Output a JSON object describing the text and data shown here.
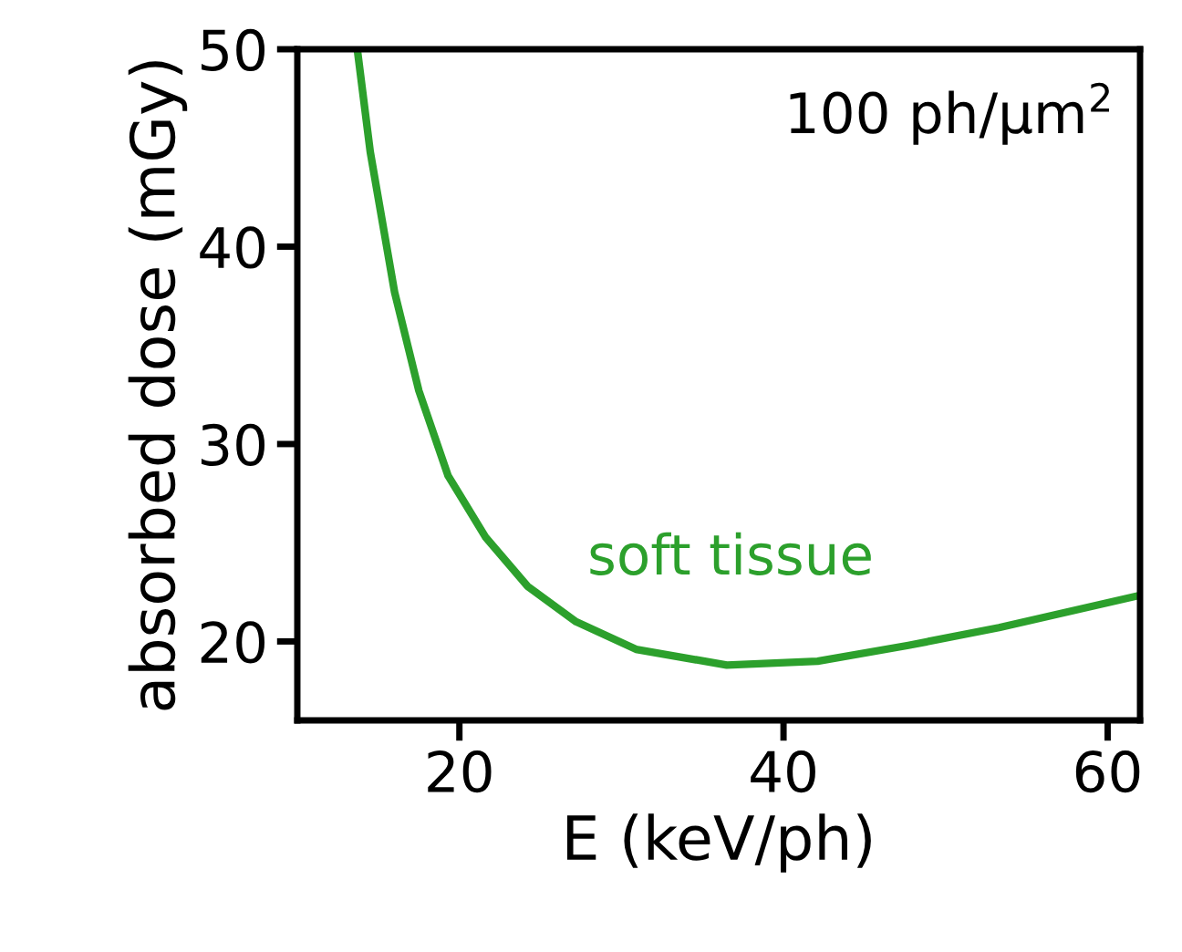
{
  "chart_data": {
    "type": "line",
    "xlabel": "E (keV/ph)",
    "ylabel": "absorbed dose (mGy)",
    "xlim": [
      10,
      62
    ],
    "ylim": [
      16,
      50
    ],
    "xticks": [
      20,
      40,
      60
    ],
    "yticks": [
      20,
      30,
      40,
      50
    ],
    "grid": false,
    "legend": false,
    "marker": "none",
    "line_style": "solid",
    "annotations": [
      "100 ph/μm$^{2}$"
    ],
    "series": [
      {
        "name": "soft tissue",
        "color": "#2ca02c",
        "x": [
          13.7,
          14.5,
          16.0,
          17.5,
          19.3,
          21.6,
          24.2,
          27.2,
          30.9,
          36.5,
          42.1,
          47.7,
          53.3,
          61.8
        ],
        "values": [
          50,
          44.8,
          37.7,
          32.7,
          28.4,
          25.3,
          22.8,
          21.0,
          19.6,
          18.8,
          19.0,
          19.8,
          20.7,
          22.3
        ]
      }
    ]
  }
}
